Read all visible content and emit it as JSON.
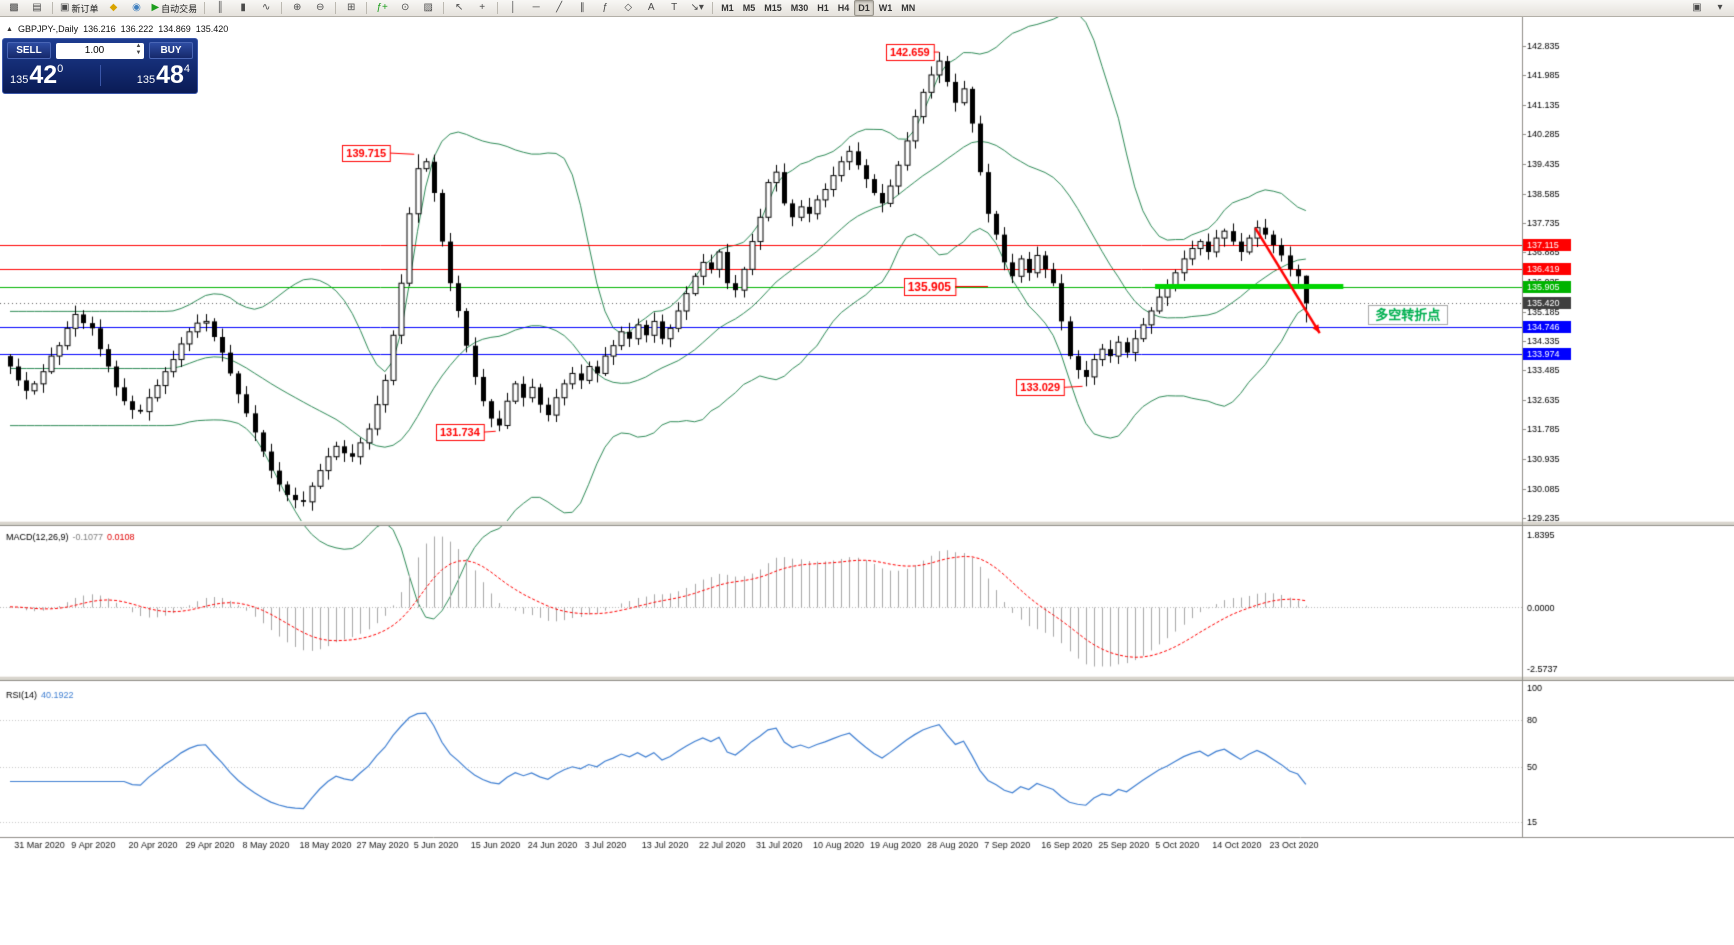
{
  "toolbar": {
    "items": [
      {
        "name": "new-chart-button",
        "glyph": "▩"
      },
      {
        "name": "profiles-button",
        "glyph": "▤"
      },
      {
        "type": "sep"
      },
      {
        "name": "new-order-button",
        "glyph": "▣",
        "label": "新订单"
      },
      {
        "name": "metaeditor-button",
        "glyph": "◆",
        "color": "#d9a400"
      },
      {
        "name": "market-button",
        "glyph": "◉",
        "color": "#3f7fbf"
      },
      {
        "name": "autotrading-button",
        "glyph": "▶",
        "label": "自动交易",
        "color": "#1d9e1d"
      },
      {
        "type": "sep"
      },
      {
        "name": "bar-chart-button",
        "glyph": "║"
      },
      {
        "name": "candlestick-chart-button",
        "glyph": "▮"
      },
      {
        "name": "line-chart-button",
        "glyph": "∿"
      },
      {
        "type": "sep"
      },
      {
        "name": "zoom-in-button",
        "glyph": "⊕"
      },
      {
        "name": "zoom-out-button",
        "glyph": "⊖"
      },
      {
        "type": "sep"
      },
      {
        "name": "tile-windows-button",
        "glyph": "⊞"
      },
      {
        "type": "sep"
      },
      {
        "name": "indicators-button",
        "glyph": "ƒ+",
        "color": "#1d9e1d"
      },
      {
        "name": "periods-button",
        "glyph": "⊙"
      },
      {
        "name": "templates-button",
        "glyph": "▨"
      },
      {
        "type": "sep"
      },
      {
        "name": "cursor-button",
        "glyph": "↖"
      },
      {
        "name": "crosshair-button",
        "glyph": "+"
      },
      {
        "type": "sep"
      },
      {
        "name": "vertical-line-button",
        "glyph": "│"
      },
      {
        "name": "horizontal-line-button",
        "glyph": "─"
      },
      {
        "name": "trendline-button",
        "glyph": "╱"
      },
      {
        "name": "channel-button",
        "glyph": "∥"
      },
      {
        "name": "fibonacci-button",
        "glyph": "ƒ"
      },
      {
        "name": "shapes-button",
        "glyph": "◇"
      },
      {
        "name": "text-button",
        "glyph": "A"
      },
      {
        "name": "label-button",
        "glyph": "T"
      },
      {
        "name": "arrows-button",
        "glyph": "↘▾"
      },
      {
        "type": "sep"
      }
    ],
    "timeframes": [
      "M1",
      "M5",
      "M15",
      "M30",
      "H1",
      "H4",
      "D1",
      "W1",
      "MN"
    ],
    "active_timeframe": "D1",
    "right_items": [
      {
        "name": "window-menu-button",
        "glyph": "▣"
      },
      {
        "name": "toolbar-options-button",
        "glyph": "▾"
      }
    ]
  },
  "chart_header": {
    "symbol": "GBPJPY-,Daily",
    "open": "136.216",
    "high": "136.222",
    "low": "134.869",
    "close": "135.420"
  },
  "trade_panel": {
    "sell_label": "SELL",
    "buy_label": "BUY",
    "volume": "1.00",
    "sell_small": "135",
    "sell_big": "42",
    "sell_sup": "0",
    "buy_small": "135",
    "buy_big": "48",
    "buy_sup": "4"
  },
  "chart_data": {
    "type": "candlestick",
    "symbol": "GBPJPY",
    "timeframe": "Daily",
    "ylim": [
      129.235,
      142.835
    ],
    "price_step": 0.85,
    "closes": [
      133.6,
      133.2,
      132.9,
      133.1,
      133.45,
      133.9,
      134.2,
      134.7,
      135.1,
      134.85,
      134.7,
      134.1,
      133.6,
      133.0,
      132.6,
      132.35,
      132.3,
      132.7,
      133.05,
      133.45,
      133.8,
      134.25,
      134.6,
      134.85,
      134.9,
      134.45,
      134.0,
      133.4,
      132.8,
      132.25,
      131.7,
      131.15,
      130.6,
      130.2,
      129.9,
      129.75,
      129.7,
      130.15,
      130.6,
      131.0,
      131.3,
      131.1,
      131.0,
      131.4,
      131.8,
      132.5,
      133.2,
      134.5,
      136.0,
      138.0,
      139.3,
      139.5,
      138.6,
      137.2,
      136.0,
      135.2,
      134.2,
      133.3,
      132.6,
      132.1,
      131.9,
      132.6,
      133.1,
      132.7,
      133.0,
      132.5,
      132.2,
      132.7,
      133.1,
      133.4,
      133.2,
      133.6,
      133.4,
      133.9,
      134.2,
      134.6,
      134.4,
      134.8,
      134.5,
      134.9,
      134.4,
      134.7,
      135.2,
      135.7,
      136.2,
      136.6,
      136.4,
      136.9,
      136.0,
      135.8,
      136.4,
      137.2,
      137.9,
      138.9,
      139.2,
      138.3,
      137.9,
      138.2,
      138.0,
      138.4,
      138.7,
      139.1,
      139.5,
      139.8,
      139.4,
      139.0,
      138.6,
      138.3,
      138.8,
      139.4,
      140.1,
      140.8,
      141.5,
      142.0,
      142.4,
      141.8,
      141.2,
      141.6,
      140.6,
      139.2,
      138.0,
      137.4,
      136.6,
      136.2,
      136.7,
      136.3,
      136.8,
      136.4,
      136.0,
      134.9,
      133.9,
      133.5,
      133.3,
      133.8,
      134.1,
      133.9,
      134.3,
      134.0,
      134.4,
      134.8,
      135.2,
      135.6,
      135.9,
      136.3,
      136.7,
      137.0,
      137.2,
      136.9,
      137.3,
      137.5,
      137.2,
      136.9,
      137.3,
      137.6,
      137.4,
      137.1,
      136.8,
      136.4,
      136.2,
      135.42
    ],
    "last_candle": {
      "open": 136.216,
      "high": 136.222,
      "low": 134.869,
      "close": 135.42
    },
    "key_extremes": {
      "50": {
        "high": 139.715
      },
      "51": {
        "high": 139.6
      },
      "60": {
        "low": 131.734
      },
      "61": {
        "low": 131.8
      },
      "114": {
        "high": 142.659
      },
      "115": {
        "high": 142.55
      },
      "132": {
        "low": 133.029
      }
    },
    "line_levels": [
      {
        "price": 137.115,
        "color": "#FF0000"
      },
      {
        "price": 136.419,
        "color": "#FF0000"
      },
      {
        "price": 135.905,
        "color": "#00B300"
      },
      {
        "price": 134.746,
        "color": "#0000FF"
      },
      {
        "price": 133.974,
        "color": "#0000FF"
      }
    ],
    "bid_price": 135.42,
    "green_segment": {
      "price": 135.905,
      "from_i": 140.5,
      "to_i": 163.6,
      "color": "#00D500",
      "width": 5
    },
    "annotations": [
      {
        "text": "142.659",
        "i": 110.4,
        "price": 142.66,
        "ti": 114,
        "tp": 142.659,
        "size": 11
      },
      {
        "text": "139.715",
        "i": 43.7,
        "price": 139.75,
        "ti": 49.6,
        "tp": 139.715,
        "size": 11
      },
      {
        "text": "135.905",
        "i": 112.8,
        "price": 135.905,
        "ti": 120,
        "tp": 135.905,
        "size": 12
      },
      {
        "text": "133.029",
        "i": 126.4,
        "price": 133.0,
        "ti": 131.6,
        "tp": 133.029,
        "size": 11
      },
      {
        "text": "131.734",
        "i": 55.2,
        "price": 131.71,
        "ti": 59.6,
        "tp": 131.734,
        "size": 11
      }
    ],
    "note": {
      "text": "多空转折点",
      "i": 171.5,
      "price": 135.11,
      "color": "#00B050"
    },
    "arrow": {
      "from_i": 152.8,
      "from_price": 137.59,
      "to_i": 160.7,
      "to_price": 134.56,
      "color": "#FF0000"
    },
    "bollinger": {
      "period": 20,
      "deviation": 2,
      "color": "#2E8B57"
    },
    "macd": {
      "label": "MACD(12,26,9)",
      "value": "-0.1077",
      "signal": "0.0108",
      "fast": 12,
      "slow": 26,
      "signal_period": 9,
      "axis_top": "1.8395",
      "axis_mid": "0.0000",
      "axis_bottom": "-2.5737",
      "hist_color": "#A8A8A8",
      "line_color": "#FF0000"
    },
    "rsi": {
      "label": "RSI(14)",
      "value": "40.1922",
      "period": 14,
      "color": "#3F7FD2",
      "axis": [
        "100",
        "80",
        "50",
        "15"
      ],
      "axis_levels": [
        100,
        80,
        50,
        15
      ],
      "levels": [
        80,
        50,
        15
      ]
    },
    "dates": [
      {
        "label": "31 Mar 2020",
        "i": 2
      },
      {
        "label": "9 Apr 2020",
        "i": 9
      },
      {
        "label": "20 Apr 2020",
        "i": 16
      },
      {
        "label": "29 Apr 2020",
        "i": 23
      },
      {
        "label": "8 May 2020",
        "i": 30
      },
      {
        "label": "18 May 2020",
        "i": 37
      },
      {
        "label": "27 May 2020",
        "i": 44
      },
      {
        "label": "5 Jun 2020",
        "i": 51
      },
      {
        "label": "15 Jun 2020",
        "i": 58
      },
      {
        "label": "24 Jun 2020",
        "i": 65
      },
      {
        "label": "3 Jul 2020",
        "i": 72
      },
      {
        "label": "13 Jul 2020",
        "i": 79
      },
      {
        "label": "22 Jul 2020",
        "i": 86
      },
      {
        "label": "31 Jul 2020",
        "i": 93
      },
      {
        "label": "10 Aug 2020",
        "i": 100
      },
      {
        "label": "19 Aug 2020",
        "i": 107
      },
      {
        "label": "28 Aug 2020",
        "i": 114
      },
      {
        "label": "7 Sep 2020",
        "i": 121
      },
      {
        "label": "16 Sep 2020",
        "i": 128
      },
      {
        "label": "25 Sep 2020",
        "i": 135
      },
      {
        "label": "5 Oct 2020",
        "i": 142
      },
      {
        "label": "14 Oct 2020",
        "i": 149
      },
      {
        "label": "23 Oct 2020",
        "i": 156
      }
    ]
  }
}
